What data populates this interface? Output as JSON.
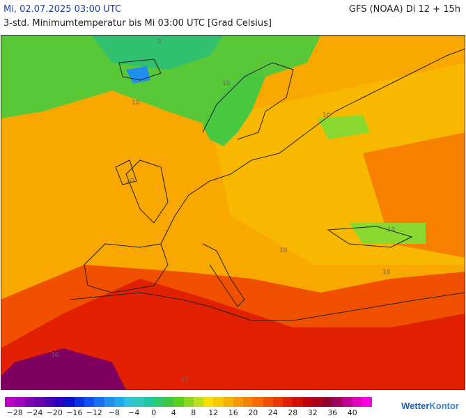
{
  "header": {
    "valid_time": "Mi, 02.07.2025 03:00 UTC",
    "model_run": "GFS (NOAA) Di 12 + 15h",
    "parameter": "3-std. Minimumtemperatur bis Mi 03:00 UTC [Grad Celsius]"
  },
  "map": {
    "region": "Europe",
    "contour_labels": [
      "0",
      "10",
      "10",
      "10",
      "10",
      "10",
      "10",
      "10",
      "30",
      "30"
    ]
  },
  "legend": {
    "ticks": [
      "−28",
      "−24",
      "−20",
      "−16",
      "−12",
      "−8",
      "−4",
      "0",
      "4",
      "8",
      "12",
      "16",
      "20",
      "24",
      "28",
      "32",
      "36",
      "40"
    ],
    "colors": [
      "#c000c0",
      "#a000c0",
      "#8000b0",
      "#6800b0",
      "#4800b0",
      "#2a00c0",
      "#0a10d0",
      "#0830e0",
      "#1050f0",
      "#1870f0",
      "#2090f0",
      "#20a8f0",
      "#30c0e0",
      "#30c8c0",
      "#20c8a0",
      "#30c870",
      "#40c840",
      "#58d020",
      "#88d820",
      "#b8e020",
      "#f8e000",
      "#f8c800",
      "#f8b000",
      "#f89800",
      "#f88000",
      "#f86800",
      "#f05000",
      "#e83800",
      "#e02000",
      "#d01000",
      "#c00010",
      "#a80020",
      "#900030",
      "#a00060",
      "#c00090",
      "#e000c0",
      "#f800e0"
    ]
  },
  "brand": {
    "name_a": "Wetter",
    "name_b": "Kontor"
  }
}
